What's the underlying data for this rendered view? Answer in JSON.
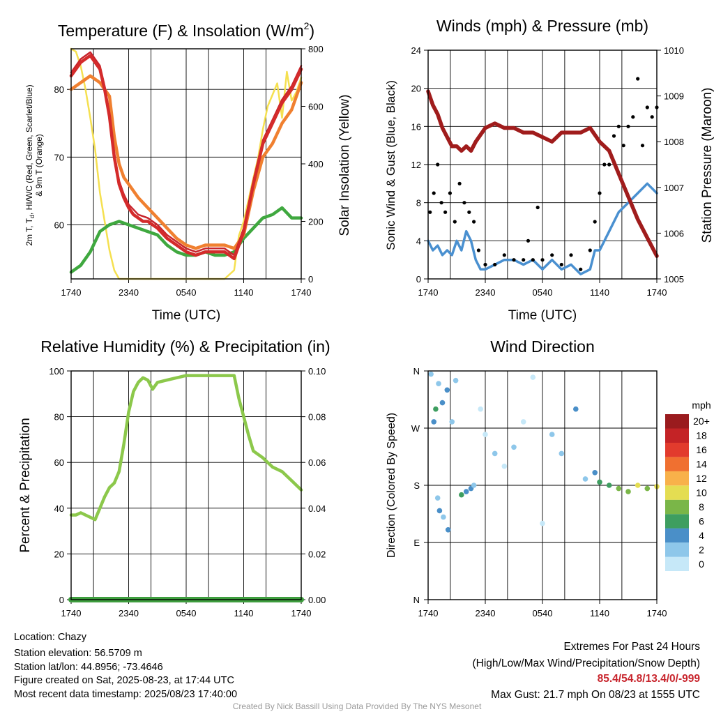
{
  "panels": {
    "temperature": {
      "title": "Temperature (F) & Insolation (W/m",
      "title_sup": "2",
      "title_close": ")",
      "ylabel_lines": [
        "2m T, T",
        "d",
        ", HI/WC (Red, Green, Scarlet/Blue)",
        "& 9m T (Orange)"
      ],
      "y2label": "Solar Insolation (Yellow)",
      "xlabel": "Time (UTC)",
      "ytick_labels": [
        "60",
        "70",
        "80"
      ],
      "y2tick_labels": [
        "0",
        "200",
        "400",
        "600",
        "800"
      ],
      "xtick_labels": [
        "1740",
        "2340",
        "0540",
        "1140",
        "1740"
      ]
    },
    "winds": {
      "title": "Winds (mph) & Pressure (mb)",
      "ylabel": "Sonic Wind & Gust (Blue, Black)",
      "y2label": "Station Pressure (Maroon)",
      "xlabel": "Time (UTC)",
      "ytick_labels": [
        "0",
        "4",
        "8",
        "12",
        "16",
        "20",
        "24"
      ],
      "y2tick_labels": [
        "1005",
        "1006",
        "1007",
        "1008",
        "1009",
        "1010"
      ],
      "xtick_labels": [
        "1740",
        "2340",
        "0540",
        "1140",
        "1740"
      ]
    },
    "humidity": {
      "title": "Relative Humidity (%) & Precipitation (in)",
      "ylabel": "Percent & Precipitation",
      "ytick_labels": [
        "0",
        "20",
        "40",
        "60",
        "80",
        "100"
      ],
      "y2tick_labels": [
        "0.00",
        "0.02",
        "0.04",
        "0.06",
        "0.08",
        "0.10"
      ],
      "xtick_labels": [
        "1740",
        "2340",
        "0540",
        "1140",
        "1740"
      ]
    },
    "direction": {
      "title": "Wind Direction",
      "ylabel": "Direction (Colored By Speed)",
      "ytick_labels": [
        "N",
        "E",
        "S",
        "W",
        "N"
      ],
      "xtick_labels": [
        "1740",
        "2340",
        "0540",
        "1140",
        "1740"
      ],
      "colorbar_unit": "mph",
      "colorbar_labels": [
        "0",
        "2",
        "4",
        "6",
        "8",
        "10",
        "12",
        "14",
        "16",
        "18",
        "20+"
      ],
      "colorbar_colors": [
        "#c6e8f8",
        "#8ec7ea",
        "#4a8fc8",
        "#3e9e60",
        "#7ab648",
        "#e4dd52",
        "#f8b14a",
        "#f07030",
        "#e23b2d",
        "#c42326",
        "#9a1b1e"
      ]
    }
  },
  "info": {
    "location": "Location: Chazy",
    "elevation": "Station elevation: 56.5709 m",
    "latlon": "Station lat/lon: 44.8956; -73.4646",
    "created": "Figure created on Sat, 2025-08-23, at 17:44 UTC",
    "recent": "Most recent data timestamp: 2025/08/23 17:40:00"
  },
  "extremes": {
    "heading": "Extremes For Past 24 Hours",
    "subheading": "(High/Low/Max Wind/Precipitation/Snow Depth)",
    "values": "85.4/54.8/13.4/0/-999",
    "max_gust": "Max Gust: 21.7 mph On 08/23 at 1555 UTC"
  },
  "credit": "Created By Nick Bassill Using Data Provided By The NYS Mesonet",
  "chart_data": [
    {
      "type": "line",
      "x_unit": "hours since start (start 1740 UTC)",
      "xlim": [
        0,
        24
      ],
      "ylim": [
        52,
        86
      ],
      "y2lim": [
        0,
        800
      ],
      "grid": true,
      "series": [
        {
          "name": "2m T",
          "color": "#d42b2b",
          "axis": "left",
          "x": [
            0,
            1,
            2,
            2.5,
            3,
            3.5,
            4,
            4.5,
            5,
            5.5,
            6,
            6.5,
            7,
            7.5,
            8,
            8.5,
            9,
            10,
            11,
            12,
            13,
            14,
            16,
            17,
            18,
            19,
            20,
            21,
            22,
            23,
            24
          ],
          "y": [
            82,
            84,
            85,
            84,
            83,
            80,
            76,
            70,
            66,
            64,
            62.5,
            61.5,
            61,
            60.5,
            60.5,
            60,
            59.5,
            58,
            57,
            56,
            55.5,
            56,
            56,
            55,
            59,
            66,
            72,
            75,
            78,
            80,
            83
          ]
        },
        {
          "name": "HI/WC",
          "color": "#c8242c",
          "axis": "left",
          "x": [
            0,
            1,
            2,
            2.5,
            3,
            3.5,
            4,
            4.5,
            5,
            5.5,
            6,
            7,
            8,
            9,
            10,
            11,
            12,
            13,
            14,
            16,
            17,
            18,
            19,
            20,
            21,
            22,
            23,
            24
          ],
          "y": [
            82.5,
            84.5,
            85.5,
            84.5,
            83.5,
            80.5,
            76.5,
            70.5,
            66.5,
            64.5,
            63,
            61.5,
            61,
            60,
            58.5,
            57.5,
            56.5,
            56,
            56.5,
            56.5,
            55.5,
            59.5,
            66.5,
            72.5,
            75.5,
            78.5,
            80.5,
            83.5
          ]
        },
        {
          "name": "9m T",
          "color": "#f08030",
          "axis": "left",
          "x": [
            0,
            1,
            2,
            3,
            4,
            4.5,
            5,
            5.5,
            6,
            7,
            8,
            9,
            10,
            11,
            12,
            13,
            14,
            16,
            17,
            18,
            19,
            20,
            21,
            22,
            23,
            24
          ],
          "y": [
            80,
            81,
            82,
            81,
            79,
            73,
            69,
            67,
            66,
            64,
            62.5,
            61,
            59.5,
            58,
            57,
            56.5,
            57,
            57,
            56.5,
            58.5,
            65,
            70,
            72,
            75,
            77,
            81
          ]
        },
        {
          "name": "Td",
          "color": "#3fa83f",
          "axis": "left",
          "x": [
            0,
            0.5,
            1,
            1.5,
            2,
            2.5,
            3,
            3.5,
            4,
            5,
            6,
            7,
            8,
            9,
            10,
            11,
            12,
            13,
            14,
            15,
            16,
            17,
            18,
            19,
            20,
            21,
            22,
            23,
            24
          ],
          "y": [
            53,
            53.5,
            54,
            55,
            56,
            57.5,
            59,
            59.5,
            60,
            60.5,
            60,
            59.5,
            59,
            58.5,
            57,
            56,
            55.5,
            55.5,
            56,
            55.5,
            55.5,
            56,
            58,
            59.5,
            61,
            61.5,
            62.5,
            61,
            61
          ]
        },
        {
          "name": "Solar Insolation",
          "color": "#f5e050",
          "axis": "right",
          "x": [
            0,
            0.5,
            1,
            1.5,
            2,
            2.5,
            3,
            3.5,
            4,
            4.5,
            5,
            6,
            8,
            10,
            12,
            14,
            16,
            17,
            17.5,
            18,
            19,
            19.5,
            20,
            20.5,
            21,
            21.5,
            22,
            22.5,
            23,
            23.5,
            24
          ],
          "y": [
            800,
            790,
            740,
            660,
            560,
            450,
            300,
            200,
            100,
            30,
            0,
            0,
            0,
            0,
            0,
            0,
            0,
            30,
            150,
            200,
            350,
            420,
            520,
            600,
            640,
            680,
            560,
            720,
            620,
            650,
            700
          ]
        }
      ]
    },
    {
      "type": "line",
      "x_unit": "hours since start (start 1740 UTC)",
      "xlim": [
        0,
        24
      ],
      "ylim": [
        0,
        24
      ],
      "y2lim": [
        1005,
        1010
      ],
      "grid": true,
      "series": [
        {
          "name": "Sonic Wind",
          "color": "#4a90d0",
          "axis": "left",
          "x": [
            0,
            0.5,
            1,
            1.5,
            2,
            2.5,
            3,
            3.5,
            4,
            4.5,
            5,
            5.5,
            6,
            7,
            8,
            9,
            10,
            11,
            12,
            13,
            14,
            15,
            16,
            17,
            17.5,
            18,
            19,
            20,
            21,
            22,
            23,
            24
          ],
          "y": [
            4,
            3,
            3.5,
            2.5,
            3,
            2.5,
            4,
            3,
            5,
            4,
            2,
            1,
            1,
            1.5,
            2,
            2,
            1.5,
            2,
            1,
            2,
            1,
            1.5,
            0.5,
            1,
            3,
            3,
            5,
            7,
            8,
            9,
            10,
            9
          ]
        },
        {
          "name": "Gust",
          "color": "#000000",
          "axis": "left",
          "markers": true,
          "x": [
            0.2,
            0.6,
            1,
            1.4,
            1.8,
            2.3,
            2.8,
            3.3,
            3.8,
            4.3,
            4.8,
            5.3,
            6,
            7,
            8,
            9,
            10,
            10.5,
            11,
            11.5,
            12,
            13,
            14,
            15,
            16,
            17,
            17.5,
            18,
            18.5,
            19,
            19.5,
            20,
            20.5,
            21,
            21.5,
            22,
            22.5,
            23,
            23.5,
            24
          ],
          "y": [
            7,
            9,
            12,
            8,
            7,
            9,
            6,
            10,
            8,
            7,
            6,
            3,
            1.5,
            1.5,
            2.5,
            2,
            2,
            4,
            2,
            7.5,
            2,
            2.5,
            1.5,
            2.5,
            1,
            3,
            6,
            9,
            12,
            12,
            15,
            16,
            14,
            16,
            17,
            21,
            14,
            18,
            17,
            18
          ]
        },
        {
          "name": "Station Pressure",
          "color": "#a01c1c",
          "axis": "right",
          "x": [
            0,
            0.5,
            1,
            1.5,
            2,
            2.5,
            3,
            3.5,
            4,
            4.5,
            5,
            6,
            7,
            8,
            9,
            10,
            11,
            12,
            13,
            14,
            15,
            16,
            17,
            18,
            19,
            20,
            21,
            22,
            23,
            24
          ],
          "y": [
            1009.1,
            1008.8,
            1008.6,
            1008.3,
            1008.1,
            1007.9,
            1007.9,
            1007.8,
            1007.9,
            1007.8,
            1008.0,
            1008.3,
            1008.4,
            1008.3,
            1008.3,
            1008.2,
            1008.2,
            1008.1,
            1008.0,
            1008.2,
            1008.2,
            1008.2,
            1008.3,
            1008.0,
            1007.8,
            1007.3,
            1006.8,
            1006.3,
            1005.9,
            1005.5
          ]
        }
      ]
    },
    {
      "type": "line",
      "x_unit": "hours since start (start 1740 UTC)",
      "xlim": [
        0,
        24
      ],
      "ylim": [
        0,
        100
      ],
      "y2lim": [
        0,
        0.1
      ],
      "grid": true,
      "series": [
        {
          "name": "Relative Humidity",
          "color": "#8cc84b",
          "axis": "left",
          "x": [
            0,
            0.5,
            1,
            1.5,
            2,
            2.5,
            3,
            3.5,
            4,
            4.5,
            5,
            5.5,
            6,
            6.5,
            7,
            7.5,
            8,
            8.5,
            9,
            10,
            11,
            12,
            13,
            14,
            15,
            16,
            17,
            17.5,
            18,
            18.5,
            19,
            20,
            21,
            22,
            23,
            24
          ],
          "y": [
            37,
            37,
            38,
            37,
            36,
            35,
            40,
            45,
            49,
            51,
            56,
            68,
            82,
            91,
            95,
            97,
            96,
            92,
            95,
            96,
            97,
            98,
            98,
            98,
            98,
            98,
            98,
            88,
            80,
            72,
            65,
            62,
            58,
            56,
            52,
            48
          ]
        },
        {
          "name": "Precipitation",
          "color": "#3e9e3e",
          "axis": "right",
          "x": [
            0,
            24
          ],
          "y": [
            0,
            0
          ]
        }
      ]
    },
    {
      "type": "scatter",
      "x_unit": "hours since start (start 1740 UTC)",
      "xlim": [
        0,
        24
      ],
      "ylim": [
        0,
        360
      ],
      "grid": true,
      "points": [
        {
          "x": 0.3,
          "y": 355,
          "speed": 3
        },
        {
          "x": 0.6,
          "y": 280,
          "speed": 4
        },
        {
          "x": 0.8,
          "y": 300,
          "speed": 6
        },
        {
          "x": 1.1,
          "y": 340,
          "speed": 3
        },
        {
          "x": 1.5,
          "y": 310,
          "speed": 4
        },
        {
          "x": 2.0,
          "y": 330,
          "speed": 5
        },
        {
          "x": 2.5,
          "y": 280,
          "speed": 3
        },
        {
          "x": 2.9,
          "y": 345,
          "speed": 2
        },
        {
          "x": 1.0,
          "y": 160,
          "speed": 2
        },
        {
          "x": 1.2,
          "y": 140,
          "speed": 4
        },
        {
          "x": 1.6,
          "y": 130,
          "speed": 3
        },
        {
          "x": 2.1,
          "y": 110,
          "speed": 5
        },
        {
          "x": 3.5,
          "y": 165,
          "speed": 6
        },
        {
          "x": 4.0,
          "y": 170,
          "speed": 5
        },
        {
          "x": 4.5,
          "y": 175,
          "speed": 4
        },
        {
          "x": 4.8,
          "y": 180,
          "speed": 3
        },
        {
          "x": 5.5,
          "y": 300,
          "speed": 1
        },
        {
          "x": 6.0,
          "y": 260,
          "speed": 1
        },
        {
          "x": 7.0,
          "y": 230,
          "speed": 2
        },
        {
          "x": 8.0,
          "y": 210,
          "speed": 1
        },
        {
          "x": 9.0,
          "y": 240,
          "speed": 3
        },
        {
          "x": 10.0,
          "y": 280,
          "speed": 1
        },
        {
          "x": 11.0,
          "y": 350,
          "speed": 1
        },
        {
          "x": 12.0,
          "y": 120,
          "speed": 1
        },
        {
          "x": 13.0,
          "y": 260,
          "speed": 2
        },
        {
          "x": 14.0,
          "y": 230,
          "speed": 3
        },
        {
          "x": 15.5,
          "y": 300,
          "speed": 4
        },
        {
          "x": 16.5,
          "y": 190,
          "speed": 3
        },
        {
          "x": 17.5,
          "y": 200,
          "speed": 5
        },
        {
          "x": 18.0,
          "y": 185,
          "speed": 6
        },
        {
          "x": 19.0,
          "y": 180,
          "speed": 7
        },
        {
          "x": 20.0,
          "y": 175,
          "speed": 8
        },
        {
          "x": 21.0,
          "y": 170,
          "speed": 9
        },
        {
          "x": 22.0,
          "y": 180,
          "speed": 10
        },
        {
          "x": 23.0,
          "y": 175,
          "speed": 9
        },
        {
          "x": 24.0,
          "y": 178,
          "speed": 10
        }
      ]
    }
  ]
}
